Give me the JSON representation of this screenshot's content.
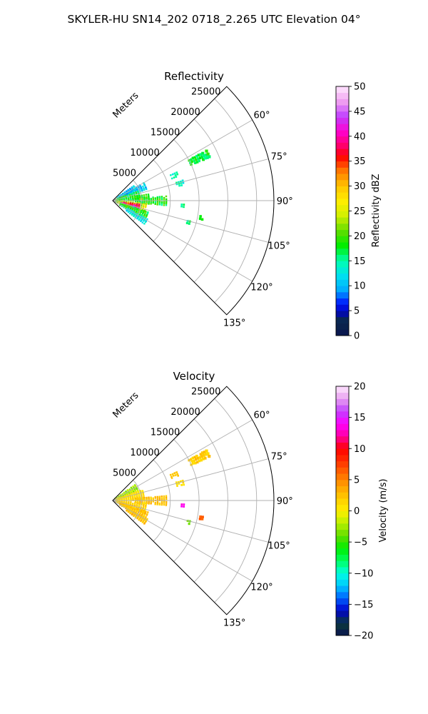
{
  "figure": {
    "suptitle": "SKYLER-HU  SN14_202  0718_2.265 UTC Elevation 04°"
  },
  "chart_data": [
    {
      "type": "heatmap",
      "projection": "polar-sector",
      "title": "Reflectivity",
      "radial_axis_label": "Meters",
      "range_ticks": [
        5000,
        10000,
        15000,
        20000,
        25000
      ],
      "range_limit": [
        0,
        28000
      ],
      "azimuth_ticks": [
        60,
        75,
        90,
        105,
        120,
        135
      ],
      "azimuth_tick_labels": [
        "60°",
        "75°",
        "90°",
        "105°",
        "120°",
        "135°"
      ],
      "azimuth_limit": [
        45,
        135
      ],
      "grid": true,
      "colorbar": {
        "label": "Reflectivity dBZ",
        "range": [
          0,
          50
        ],
        "ticks": [
          0,
          5,
          10,
          15,
          20,
          25,
          30,
          35,
          40,
          45,
          50
        ],
        "tick_labels": [
          "0",
          "5",
          "10",
          "15",
          "20",
          "25",
          "30",
          "35",
          "40",
          "45",
          "50"
        ],
        "stops": [
          [
            0,
            "#0a1450"
          ],
          [
            3,
            "#0b2a4a"
          ],
          [
            5,
            "#0000cc"
          ],
          [
            7,
            "#0030ff"
          ],
          [
            9,
            "#00a8ff"
          ],
          [
            12,
            "#00e0f0"
          ],
          [
            15,
            "#00ffb0"
          ],
          [
            18,
            "#00ee00"
          ],
          [
            21,
            "#60dd00"
          ],
          [
            24,
            "#d0f000"
          ],
          [
            27,
            "#ffee00"
          ],
          [
            30,
            "#ffc400"
          ],
          [
            33,
            "#ff7a00"
          ],
          [
            36,
            "#ff0000"
          ],
          [
            38,
            "#ff0066"
          ],
          [
            41,
            "#ff00d0"
          ],
          [
            44,
            "#c040ff"
          ],
          [
            47,
            "#f0a0f0"
          ],
          [
            50,
            "#ffe8ff"
          ]
        ]
      },
      "echo_regions": [
        {
          "az": [
            55,
            66
          ],
          "r": [
            1000,
            4500
          ],
          "value": [
            8,
            14
          ]
        },
        {
          "az": [
            60,
            72
          ],
          "r": [
            2000,
            6500
          ],
          "value": [
            8,
            14
          ]
        },
        {
          "az": [
            70,
            90
          ],
          "r": [
            500,
            5000
          ],
          "value": [
            14,
            22
          ]
        },
        {
          "az": [
            85,
            96
          ],
          "r": [
            4000,
            9500
          ],
          "value": [
            15,
            22
          ]
        },
        {
          "az": [
            95,
            110
          ],
          "r": [
            500,
            6000
          ],
          "value": [
            18,
            30
          ]
        },
        {
          "az": [
            98,
            108
          ],
          "r": [
            2000,
            5000
          ],
          "value": [
            32,
            40
          ]
        },
        {
          "az": [
            103,
            112
          ],
          "r": [
            1500,
            4500
          ],
          "value": [
            38,
            44
          ]
        },
        {
          "az": [
            108,
            122
          ],
          "r": [
            1500,
            6500
          ],
          "value": [
            15,
            22
          ]
        },
        {
          "az": [
            118,
            126
          ],
          "r": [
            3000,
            7000
          ],
          "value": [
            10,
            15
          ]
        },
        {
          "az": [
            80,
            92
          ],
          "r": [
            4000,
            6500
          ],
          "value": [
            16,
            22
          ]
        },
        {
          "az": [
            62,
            66
          ],
          "r": [
            15000,
            18500
          ],
          "value": [
            15,
            20
          ]
        },
        {
          "az": [
            66,
            70
          ],
          "r": [
            11000,
            12500
          ],
          "value": [
            12,
            16
          ]
        },
        {
          "az": [
            74,
            78
          ],
          "r": [
            11500,
            13000
          ],
          "value": [
            12,
            16
          ]
        },
        {
          "az": [
            93,
            95
          ],
          "r": [
            12000,
            12500
          ],
          "value": [
            14,
            18
          ]
        },
        {
          "az": [
            100,
            102
          ],
          "r": [
            15500,
            16000
          ],
          "value": [
            15,
            19
          ]
        },
        {
          "az": [
            105,
            107
          ],
          "r": [
            13500,
            14000
          ],
          "value": [
            14,
            18
          ]
        }
      ]
    },
    {
      "type": "heatmap",
      "projection": "polar-sector",
      "title": "Velocity",
      "radial_axis_label": "Meters",
      "range_ticks": [
        5000,
        10000,
        15000,
        20000,
        25000
      ],
      "range_limit": [
        0,
        28000
      ],
      "azimuth_ticks": [
        60,
        75,
        90,
        105,
        120,
        135
      ],
      "azimuth_tick_labels": [
        "60°",
        "75°",
        "90°",
        "105°",
        "120°",
        "135°"
      ],
      "azimuth_limit": [
        45,
        135
      ],
      "grid": true,
      "colorbar": {
        "label": "Velocity (m/s)",
        "range": [
          -20,
          20
        ],
        "ticks": [
          -20,
          -15,
          -10,
          -5,
          0,
          5,
          10,
          15,
          20
        ],
        "tick_labels": [
          "−20",
          "−15",
          "−10",
          "−5",
          "0",
          "5",
          "10",
          "15",
          "20"
        ],
        "stops": [
          [
            -20,
            "#0a1450"
          ],
          [
            -18,
            "#0b3a3a"
          ],
          [
            -16,
            "#0000cc"
          ],
          [
            -14,
            "#0060ff"
          ],
          [
            -12,
            "#00c8ff"
          ],
          [
            -10,
            "#00ffe0"
          ],
          [
            -8,
            "#00ff60"
          ],
          [
            -6,
            "#00ee00"
          ],
          [
            -4,
            "#60dd00"
          ],
          [
            -2,
            "#b8f000"
          ],
          [
            0,
            "#ffee00"
          ],
          [
            2,
            "#ffcc00"
          ],
          [
            4,
            "#ffa000"
          ],
          [
            6,
            "#ff6a00"
          ],
          [
            8,
            "#ff3000"
          ],
          [
            10,
            "#ff0000"
          ],
          [
            12,
            "#ff00a0"
          ],
          [
            14,
            "#ff00ff"
          ],
          [
            16,
            "#c040ff"
          ],
          [
            18,
            "#e8a0f0"
          ],
          [
            20,
            "#ffe8ff"
          ]
        ]
      },
      "echo_regions": [
        {
          "az": [
            55,
            70
          ],
          "r": [
            500,
            5000
          ],
          "value": [
            -4,
            -1
          ]
        },
        {
          "az": [
            70,
            90
          ],
          "r": [
            500,
            5500
          ],
          "value": [
            0,
            2
          ]
        },
        {
          "az": [
            85,
            96
          ],
          "r": [
            4000,
            9500
          ],
          "value": [
            1,
            4
          ]
        },
        {
          "az": [
            95,
            112
          ],
          "r": [
            500,
            6000
          ],
          "value": [
            0,
            3
          ]
        },
        {
          "az": [
            108,
            122
          ],
          "r": [
            1500,
            6500
          ],
          "value": [
            1,
            4
          ]
        },
        {
          "az": [
            118,
            126
          ],
          "r": [
            3000,
            7000
          ],
          "value": [
            1,
            4
          ]
        },
        {
          "az": [
            62,
            66
          ],
          "r": [
            15000,
            18500
          ],
          "value": [
            1,
            3
          ]
        },
        {
          "az": [
            66,
            70
          ],
          "r": [
            11000,
            12500
          ],
          "value": [
            1,
            3
          ]
        },
        {
          "az": [
            74,
            78
          ],
          "r": [
            11500,
            13000
          ],
          "value": [
            0,
            2
          ]
        },
        {
          "az": [
            93,
            95
          ],
          "r": [
            12000,
            12500
          ],
          "value": [
            13,
            14
          ]
        },
        {
          "az": [
            100,
            102
          ],
          "r": [
            15500,
            16000
          ],
          "value": [
            6,
            7
          ]
        },
        {
          "az": [
            105,
            107
          ],
          "r": [
            13500,
            14000
          ],
          "value": [
            -4,
            -3
          ]
        }
      ]
    }
  ]
}
